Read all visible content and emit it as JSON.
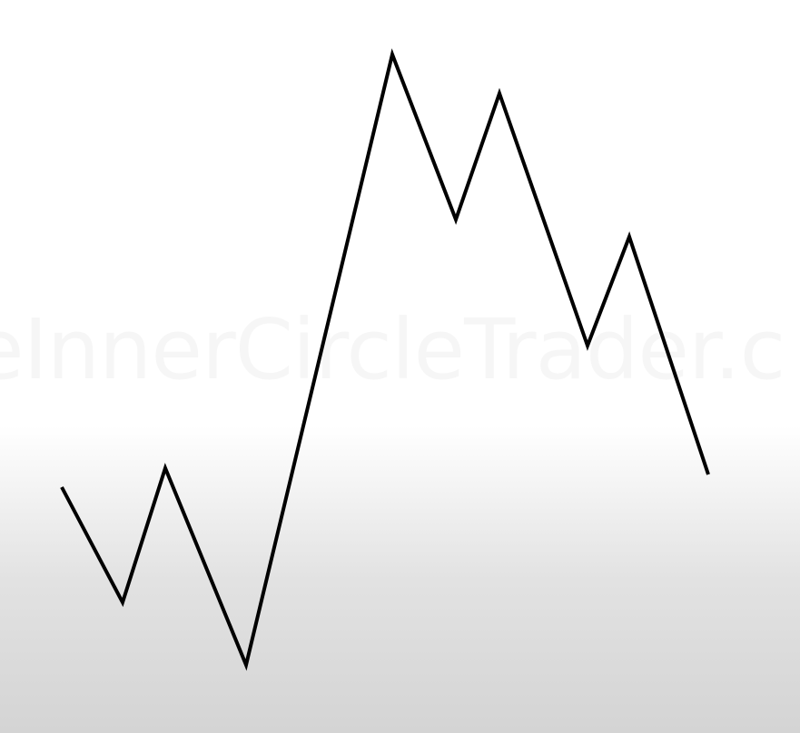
{
  "watermark": {
    "text": "eInnerCircleTrader.c"
  },
  "diagram": {
    "type": "price-swing-line",
    "stroke_color": "#000000",
    "background_color": "#ffffff"
  }
}
